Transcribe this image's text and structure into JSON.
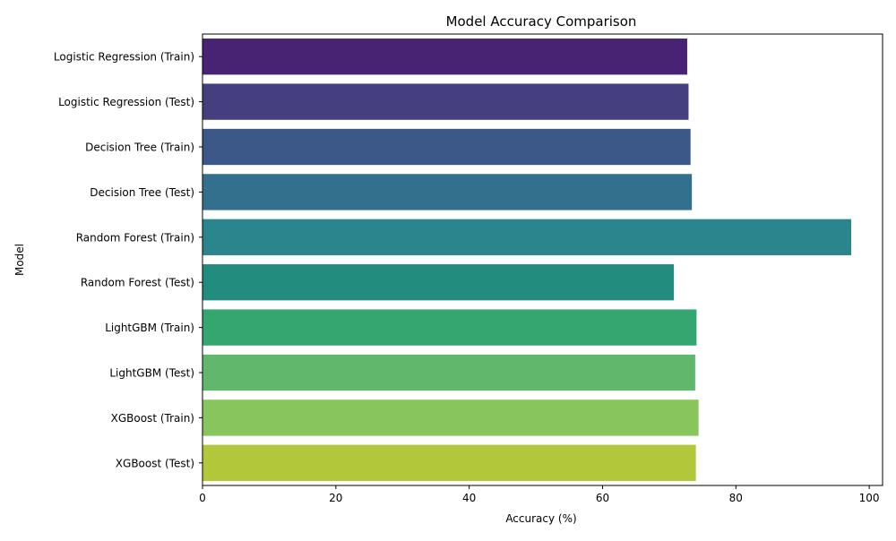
{
  "chart_data": {
    "type": "bar",
    "orientation": "horizontal",
    "title": "Model Accuracy Comparison",
    "xlabel": "Accuracy (%)",
    "ylabel": "Model",
    "xlim": [
      0,
      102
    ],
    "xticks": [
      0,
      20,
      40,
      60,
      80,
      100
    ],
    "grid": false,
    "legend": "none",
    "categories": [
      "Logistic Regression (Train)",
      "Logistic Regression (Test)",
      "Decision Tree (Train)",
      "Decision Tree (Test)",
      "Random Forest (Train)",
      "Random Forest (Test)",
      "LightGBM (Train)",
      "LightGBM (Test)",
      "XGBoost (Train)",
      "XGBoost (Test)"
    ],
    "values": [
      72.7,
      72.9,
      73.2,
      73.4,
      97.3,
      70.7,
      74.1,
      73.9,
      74.4,
      74.0
    ],
    "colors": [
      "#482374",
      "#453f80",
      "#3b5888",
      "#33708d",
      "#2a858d",
      "#228c7f",
      "#35a670",
      "#61b86c",
      "#88c55c",
      "#b2c73a"
    ]
  }
}
